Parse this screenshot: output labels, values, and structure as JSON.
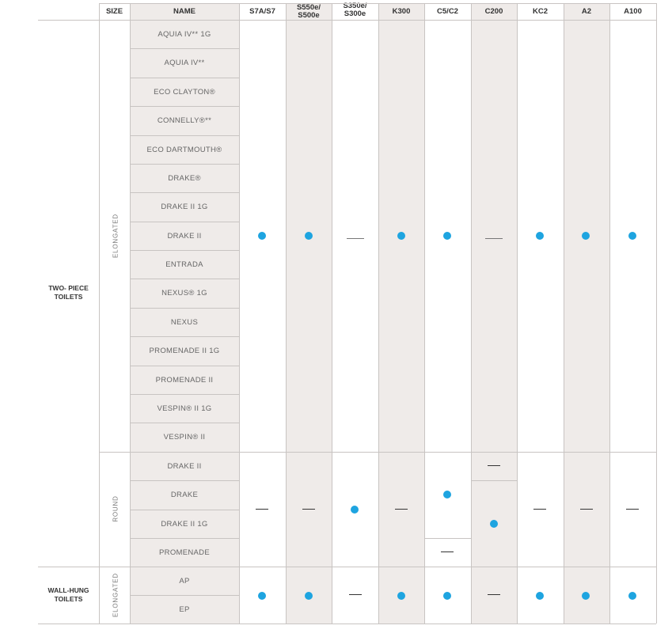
{
  "header": {
    "size": "SIZE",
    "name": "NAME",
    "columns": [
      "S7A/S7",
      "S550e/\nS500e",
      "S350e/\nS300e",
      "K300",
      "C5/C2",
      "C200",
      "KC2",
      "A2",
      "A100"
    ]
  },
  "groups": {
    "two_piece": "TWO- PIECE\nTOILETS",
    "wall_hung": "WALL-HUNG\nTOILETS"
  },
  "sizes": {
    "elongated": "ELONGATED",
    "round": "ROUND",
    "elongated_wall": "ELONGATED"
  },
  "names": {
    "elongated": [
      "AQUIA IV** 1G",
      "AQUIA IV**",
      "ECO CLAYTON®",
      "CONNELLY®**",
      "ECO DARTMOUTH®",
      "DRAKE®",
      "DRAKE II 1G",
      "DRAKE II",
      "ENTRADA",
      "NEXUS® 1G",
      "NEXUS",
      "PROMENADE II 1G",
      "PROMENADE II",
      "VESPIN® II 1G",
      "VESPIN® II"
    ],
    "round": [
      "DRAKE II",
      "DRAKE",
      "DRAKE II 1G",
      "PROMENADE"
    ],
    "wall_hung": [
      "AP",
      "EP"
    ]
  },
  "compatibility": {
    "two_piece_elongated": [
      "yes",
      "yes",
      "no",
      "yes",
      "yes",
      "no",
      "yes",
      "yes",
      "yes"
    ],
    "two_piece_round": [
      "no",
      "no",
      "yes",
      "no",
      "yes (DRAKE, DRAKE II 1G) / no (PROMENADE)",
      "no (DRAKE II) / yes (DRAKE, DRAKE II 1G, PROMENADE)",
      "no",
      "no",
      "no"
    ],
    "wall_hung_elongated": [
      "yes",
      "yes",
      "no",
      "yes",
      "yes",
      "no",
      "yes",
      "yes",
      "yes"
    ]
  },
  "colors": {
    "dot": "#1ea4e0",
    "shade": "#efebe9",
    "grid": "#c8c4c2"
  }
}
